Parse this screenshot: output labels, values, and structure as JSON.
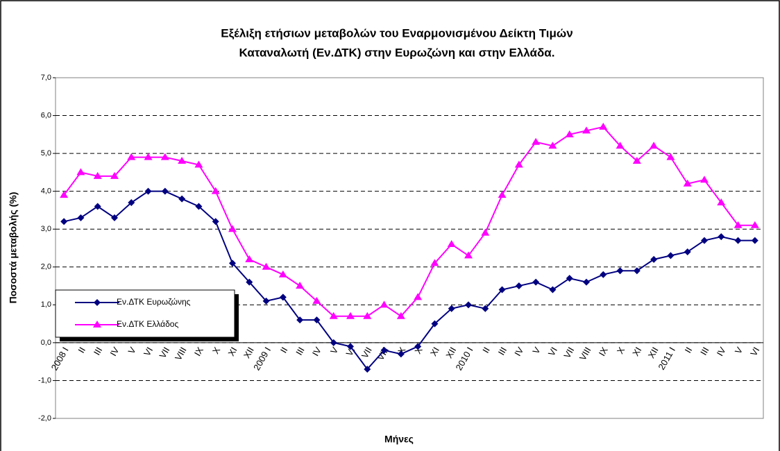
{
  "chart_data": {
    "type": "line",
    "title": [
      "Εξέλιξη ετήσιων μεταβολών του Εναρμονισμένου Δείκτη Τιμών",
      "Καταναλωτή (Εν.ΔΤΚ) στην Ευρωζώνη  και στην Ελλάδα."
    ],
    "x_label": "Μήνες",
    "y_label": "Ποσοστά μεταβολής (%)",
    "categories": [
      "2008 I",
      "II",
      "III",
      "IV",
      "V",
      "VI",
      "VII",
      "VIII",
      "IX",
      "X",
      "XI",
      "XII",
      "2009 I",
      "II",
      "III",
      "IV",
      "V",
      "VI",
      "VII",
      "VIII",
      "IX",
      "X",
      "XI",
      "XII",
      "2010 I",
      "II",
      "III",
      "IV",
      "V",
      "VI",
      "VII",
      "VIII",
      "IX",
      "X",
      "XI",
      "XII",
      "2011 I",
      "II",
      "III",
      "IV",
      "V",
      "VI"
    ],
    "series": [
      {
        "name": "Εν.ΔΤΚ Ευρωζώνης",
        "color": "#000080",
        "marker": "diamond",
        "values": [
          3.2,
          3.3,
          3.6,
          3.3,
          3.7,
          4.0,
          4.0,
          3.8,
          3.6,
          3.2,
          2.1,
          1.6,
          1.1,
          1.2,
          0.6,
          0.6,
          0.0,
          -0.1,
          -0.7,
          -0.2,
          -0.3,
          -0.1,
          0.5,
          0.9,
          1.0,
          0.9,
          1.4,
          1.5,
          1.6,
          1.4,
          1.7,
          1.6,
          1.8,
          1.9,
          1.9,
          2.2,
          2.3,
          2.4,
          2.7,
          2.8,
          2.7,
          2.7
        ]
      },
      {
        "name": "Εν.ΔΤΚ Ελλάδος",
        "color": "#ff00ff",
        "marker": "triangle",
        "values": [
          3.9,
          4.5,
          4.4,
          4.4,
          4.9,
          4.9,
          4.9,
          4.8,
          4.7,
          4.0,
          3.0,
          2.2,
          2.0,
          1.8,
          1.5,
          1.1,
          0.7,
          0.7,
          0.7,
          1.0,
          0.7,
          1.2,
          2.1,
          2.6,
          2.3,
          2.9,
          3.9,
          4.7,
          5.3,
          5.2,
          5.5,
          5.6,
          5.7,
          5.2,
          4.8,
          5.2,
          4.9,
          4.2,
          4.3,
          3.7,
          3.1,
          3.1
        ]
      }
    ],
    "ylim": [
      -2,
      7
    ],
    "yticks": [
      {
        "value": -2,
        "label": "-2,0"
      },
      {
        "value": -1,
        "label": "-1,0"
      },
      {
        "value": 0,
        "label": "0,0"
      },
      {
        "value": 1,
        "label": "1,0"
      },
      {
        "value": 2,
        "label": "2,0"
      },
      {
        "value": 3,
        "label": "3,0"
      },
      {
        "value": 4,
        "label": "4,0"
      },
      {
        "value": 5,
        "label": "5,0"
      },
      {
        "value": 6,
        "label": "6,0"
      },
      {
        "value": 7,
        "label": "7,0"
      }
    ],
    "grid": true,
    "legend": "lower left"
  }
}
